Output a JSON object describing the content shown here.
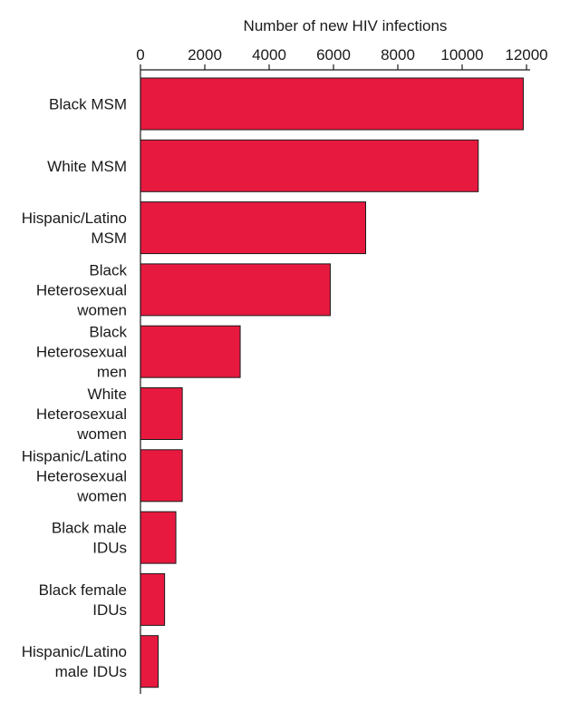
{
  "chart_data": {
    "type": "bar",
    "orientation": "horizontal",
    "xlabel": "Number of new HIV infections",
    "ylabel": "",
    "xlim": [
      0,
      12000
    ],
    "xticks": [
      0,
      2000,
      4000,
      6000,
      8000,
      10000,
      12000
    ],
    "x_axis_position": "top",
    "grid": false,
    "bar_color": "#e8193f",
    "categories": [
      [
        "Black MSM"
      ],
      [
        "White MSM"
      ],
      [
        "Hispanic/Latino",
        "MSM"
      ],
      [
        "Black",
        "Heterosexual",
        "women"
      ],
      [
        "Black",
        "Heterosexual",
        "men"
      ],
      [
        "White",
        "Heterosexual",
        "women"
      ],
      [
        "Hispanic/Latino",
        "Heterosexual",
        "women"
      ],
      [
        "Black male",
        "IDUs"
      ],
      [
        "Black female",
        "IDUs"
      ],
      [
        "Hispanic/Latino",
        "male IDUs"
      ]
    ],
    "values": [
      11900,
      10500,
      7000,
      5900,
      3100,
      1300,
      1300,
      1100,
      750,
      550
    ]
  }
}
